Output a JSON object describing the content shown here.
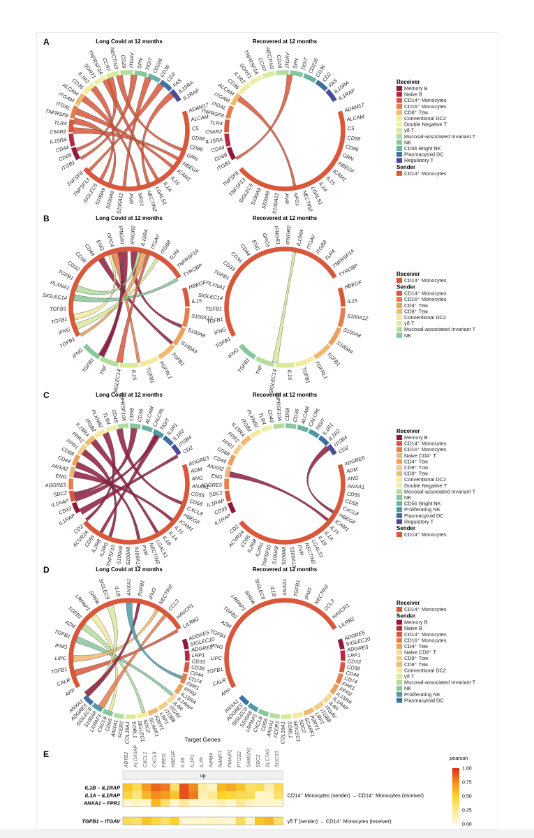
{
  "colors": {
    "Memory B": "#8e1b3d",
    "Naive B": "#b52a3f",
    "CD14+ Monocytes": "#d9573b",
    "CD16+ Monocytes": "#e77d4a",
    "CD4+ TEM": "#eda05b",
    "CD8+ TEM": "#f0b96e",
    "CD8+ TCM": "#f3cf86",
    "Naive CD4+ T": "#ecb57c",
    "Naive CD8+ T": "#f3d9a0",
    "Conventional DC2": "#f3ea9d",
    "Double Negative T": "#eef0a9",
    "γδ T": "#d8ea9c",
    "Mucosal-associated Invariant T": "#b4dd9d",
    "NK": "#87c79c",
    "CD56 Bright NK": "#69b3a0",
    "Proliferating NK": "#4f9aa8",
    "Plasmacytoid DC": "#3f6fa3",
    "Regulatory T": "#4b4a9b"
  },
  "panels": [
    {
      "label": "A",
      "titles": [
        "Long Covid at 12 months",
        "Recovered at 12 months"
      ],
      "left_genes": [
        "ITGB1",
        "CD69",
        "CD44",
        "IL15RA",
        "C5AR2",
        "TLR4",
        "TNFRSF8",
        "ITGAL",
        "ITGAM",
        "ALCAM",
        "CD36",
        "IL1R2",
        "SORT1",
        "TNFRSF1A",
        "CCR7",
        "NECTIN3",
        "CD28",
        "ITGAV",
        "SPN",
        "TIGIT",
        "CD226",
        "CD36",
        "CD2",
        "FAS",
        "IL15RA",
        "IL1RAP"
      ],
      "right_genes": [
        "ADAM17",
        "ALCAM",
        "C5",
        "CD58",
        "CD86",
        "GRN",
        "HBEGF",
        "ICAM1",
        "IL15",
        "IL1A",
        "LGALS1",
        "NECTIN2",
        "NFG1",
        "PVR",
        "S100A12",
        "S100A8",
        "S100A9",
        "SIGLEC5",
        "TNFSF13",
        "TNFSF8"
      ],
      "legend": {
        "receiver_title": "Receiver",
        "receivers": [
          "Memory B",
          "Naive B",
          "CD14⁺ Monocytes",
          "CD16⁺ Monocytes",
          "CD8⁺ Tᴇᴍ",
          "Conventional DC2",
          "Double Negative T",
          "γδ T",
          "Mucosal-associated Invariant T",
          "NK",
          "CD56 Bright NK",
          "Plasmacytoid DC",
          "Regulatory T"
        ],
        "sender_title": "Sender",
        "senders": [
          "CD14⁺ Monocytes"
        ]
      },
      "receiver_keys": [
        "Memory B",
        "Naive B",
        "CD14+ Monocytes",
        "CD16+ Monocytes",
        "CD8+ TEM",
        "Conventional DC2",
        "Double Negative T",
        "γδ T",
        "Mucosal-associated Invariant T",
        "NK",
        "CD56 Bright NK",
        "Plasmacytoid DC",
        "Regulatory T"
      ],
      "sender_keys": [
        "CD14+ Monocytes"
      ]
    },
    {
      "label": "B",
      "titles": [
        "Long Covid at 12 months",
        "Recovered at 12 months"
      ],
      "left_genes": [
        "TGFB1",
        "IFNG",
        "TGFB1",
        "TGFB1",
        "SIGLEC14",
        "PLXNA1",
        "TGFB1",
        "CD33",
        "CD36",
        "CD44",
        "ENG",
        "GPC4",
        "IFNGR1",
        "IFNGR2",
        "IL15RA",
        "ITGAV",
        "ITGB8",
        "TLR4",
        "TNFRSF1A",
        "TYROBP"
      ],
      "right_genes": [
        "HBEGF",
        "IL15",
        "S100A12",
        "S100A8",
        "S100A9",
        "TGFB1",
        "FGFRL1",
        "TGFB1",
        "IL15",
        "SIGLEC14",
        "TNF",
        "TGFB1",
        "IFNG"
      ],
      "legend": {
        "receiver_title": "Receiver",
        "receivers": [
          "CD14⁺ Monocytes"
        ],
        "sender_title": "Sender",
        "senders": [
          "CD14⁺ Monocytes",
          "CD16⁺ Monocytes",
          "CD4⁺ Tᴇᴍ",
          "CD8⁺ Tᴇᴍ",
          "Conventional DC2",
          "γδ T",
          "Mucosal-associated Invariant T",
          "NK"
        ]
      },
      "receiver_keys": [
        "CD14+ Monocytes"
      ],
      "sender_keys": [
        "CD14+ Monocytes",
        "CD16+ Monocytes",
        "CD4+ TEM",
        "CD8+ TEM",
        "Conventional DC2",
        "γδ T",
        "Mucosal-associated Invariant T",
        "NK"
      ]
    },
    {
      "label": "C",
      "titles": [
        "Long Covid at 12 months",
        "Recovered at 12 months"
      ],
      "left_genes": [
        "IL1RAP",
        "CD33",
        "IL1RAP",
        "SDC2",
        "ADGRE5",
        "ENG",
        "ANXA2",
        "CD44",
        "CD68",
        "FPR1",
        "FPR2",
        "IL15RA",
        "ITGB2",
        "PLXNB2",
        "TLR4",
        "CD48",
        "TNFRSF10A",
        "CD58",
        "CD36",
        "ALCAM",
        "CALCRL",
        "TIGIT",
        "IL1R1",
        "IL1R2",
        "ITGB4",
        "CD2"
      ],
      "right_genes": [
        "ADGRE5",
        "ADM",
        "ANG",
        "ANXA1",
        "CD55",
        "CD58",
        "CXCL8",
        "HBEGF",
        "ICAM1",
        "IL15",
        "IL1A",
        "IL1B",
        "LGALS1",
        "NECTIN2",
        "PVR",
        "S100A12",
        "S100A8",
        "S100A9",
        "TNFSF10",
        "IL2RG",
        "IL2RB",
        "CD55",
        "ACVR2A",
        "CD2"
      ],
      "legend": {
        "receiver_title": "Receiver",
        "receivers": [
          "Memory B",
          "CD14⁺ Monocytes",
          "CD16⁺ Monocytes",
          "Naive CD4⁺ T",
          "CD4⁺ Tᴇᴍ",
          "CD8⁺ Tᴄᴍ",
          "CD8⁺ Tᴇᴍ",
          "Conventional DC2",
          "Double Negative T",
          "Mucosal-associated Invariant T",
          "NK",
          "CD56 Bright NK",
          "Proliferating NK",
          "Plasmacytoid DC",
          "Regulatory T"
        ],
        "sender_title": "Sender",
        "senders": [
          "CD14⁺ Monocytes"
        ]
      },
      "receiver_keys": [
        "Memory B",
        "CD14+ Monocytes",
        "CD16+ Monocytes",
        "Naive CD4+ T",
        "CD4+ TEM",
        "CD8+ TCM",
        "CD8+ TEM",
        "Conventional DC2",
        "Double Negative T",
        "Mucosal-associated Invariant T",
        "NK",
        "CD56 Bright NK",
        "Proliferating NK",
        "Plasmacytoid DC",
        "Regulatory T"
      ],
      "sender_keys": [
        "CD14+ Monocytes"
      ]
    },
    {
      "label": "D",
      "titles": [
        "Long Covid at 12 months",
        "Recovered at 12 months"
      ],
      "left_genes": [
        "APP",
        "CALR",
        "TGFB1",
        "LIPC",
        "IFNG",
        "TGFB1",
        "A2M",
        "TGFB1",
        "LRPAP1",
        "SIRPA",
        "SIGLEC9",
        "IL1B",
        "ANXA1",
        "TGFB1",
        "IFNG",
        "NECTIN2",
        "CCL3",
        "HAVCR1",
        "LILRB2"
      ],
      "right_genes": [
        "ADGRE5",
        "SIGLEC10",
        "ADGRE5",
        "LRP1",
        "CD33",
        "CD36",
        "CD44",
        "CD74",
        "FPR1",
        "FPR2",
        "IL15RA",
        "IL1RAP",
        "IL4R",
        "ITGAV",
        "ITGB8",
        "LRP1",
        "P2RY1",
        "SCARF1",
        "SDC2",
        "SIGLEC1",
        "SORL1",
        "COL18A1",
        "FCER2",
        "ANXA1",
        "CD55",
        "CXCL8",
        "LRPAP1",
        "S100A8",
        "SIGLEC9",
        "ADGRE5",
        "ANXA1"
      ],
      "legend": {
        "receiver_title": "Receiver",
        "receivers": [
          "CD14⁺ Monocytes"
        ],
        "sender_title": "Sender",
        "senders": [
          "Memory B",
          "Naive B",
          "CD14⁺ Monocytes",
          "CD16⁺ Monocytes",
          "CD4⁺ Tᴇᴍ",
          "Naive CD8⁺ T",
          "CD8⁺ Tᴄᴍ",
          "CD8⁺ Tᴇᴍ",
          "Conventional DC2",
          "γδ T",
          "Mucosal-associated Invariant T",
          "NK",
          "Proliferating NK",
          "Plasmacytoid DC"
        ]
      },
      "receiver_keys": [
        "CD14+ Monocytes"
      ],
      "sender_keys": [
        "Memory B",
        "Naive B",
        "CD14+ Monocytes",
        "CD16+ Monocytes",
        "CD4+ TEM",
        "Naive CD8+ T",
        "CD8+ TCM",
        "CD8+ TEM",
        "Conventional DC2",
        "γδ T",
        "Mucosal-associated Invariant T",
        "NK",
        "Proliferating NK",
        "Plasmacytoid DC"
      ]
    }
  ],
  "chart_data": {
    "type": "heatmap",
    "label": "E",
    "title": "Target Genes",
    "facet": "up",
    "columns": [
      "ABTB2",
      "ALOX5AP",
      "CXCL1",
      "CXCL8",
      "EREG",
      "HBEGF",
      "IL1B",
      "IL1R1",
      "IL7R",
      "INHBA",
      "NAMPT",
      "PMAIP1",
      "PTGS2",
      "SAMSN1",
      "SDC2",
      "SLC7A5",
      "SOCS3"
    ],
    "rows": [
      "IL1B – IL1RAP",
      "IL1A – IL1RAP",
      "ANXA1 – FPR1",
      "TGFB1 – ITGAV"
    ],
    "values": [
      [
        0.55,
        0.4,
        0.7,
        0.85,
        0.8,
        0.35,
        0.9,
        0.75,
        0.2,
        0.1,
        0.6,
        0.65,
        0.55,
        0.35,
        0.4,
        0.15,
        0.4
      ],
      [
        0.45,
        0.3,
        0.6,
        0.75,
        0.7,
        0.55,
        0.9,
        0.8,
        0.15,
        0.25,
        0.5,
        0.45,
        0.4,
        0.4,
        0.05,
        0.1,
        0.35
      ],
      [
        0.05,
        0.1,
        0.05,
        0.6,
        0.35,
        0.05,
        0.25,
        0.05,
        0.05,
        0.05,
        0.15,
        0.05,
        0.25,
        0.1,
        0.05,
        0.05,
        0.05
      ],
      [
        0.4,
        0.35,
        0.55,
        0.45,
        0.35,
        0.5,
        0.05,
        0.05,
        0.05,
        0.1,
        0.05,
        0.05,
        0.4,
        0.05,
        0.55,
        0.6,
        0.35
      ]
    ],
    "row_annotations": [
      "CD14⁺ Monocytes (sender) → CD14⁺ Monocytes (receiver)",
      "γδ T (sender) → CD14⁺ Monocytes (receiver)"
    ],
    "legend_title": "pearson",
    "legend_ticks": [
      "1.00",
      "0.75",
      "0.50",
      "0.25",
      "0.00"
    ],
    "range": [
      0,
      1
    ]
  }
}
